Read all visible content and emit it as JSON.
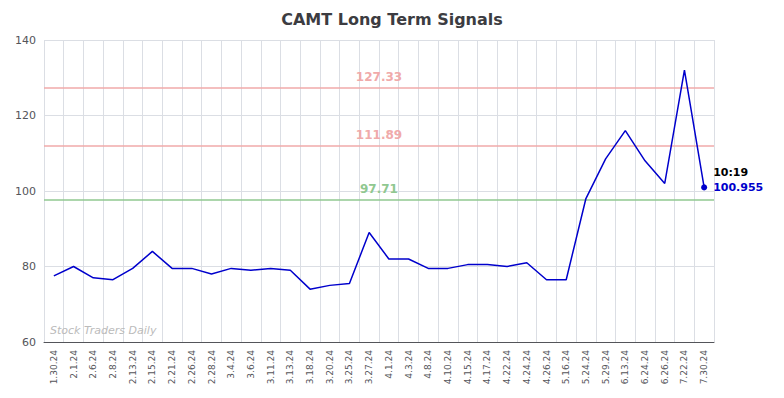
{
  "chart_data": {
    "type": "line",
    "title": "CAMT Long Term Signals",
    "categories": [
      "1.30.24",
      "2.1.24",
      "2.6.24",
      "2.8.24",
      "2.13.24",
      "2.15.24",
      "2.21.24",
      "2.26.24",
      "2.28.24",
      "3.4.24",
      "3.6.24",
      "3.11.24",
      "3.13.24",
      "3.18.24",
      "3.20.24",
      "3.25.24",
      "3.27.24",
      "4.1.24",
      "4.3.24",
      "4.8.24",
      "4.10.24",
      "4.15.24",
      "4.17.24",
      "4.22.24",
      "4.24.24",
      "4.26.24",
      "5.16.24",
      "5.24.24",
      "5.29.24",
      "6.13.24",
      "6.24.24",
      "6.26.24",
      "7.22.24",
      "7.30.24"
    ],
    "values": [
      77.5,
      80.0,
      77.0,
      76.5,
      79.5,
      84.0,
      79.5,
      79.5,
      78.0,
      79.5,
      79.0,
      79.5,
      79.0,
      74.0,
      75.0,
      75.5,
      89.0,
      82.0,
      82.0,
      79.5,
      79.5,
      80.5,
      80.5,
      80.0,
      81.0,
      76.5,
      76.5,
      98.0,
      108.5,
      116.0,
      108.0,
      102.0,
      132.0,
      100.955
    ],
    "color": "#0000cc",
    "ylim": [
      60,
      140
    ],
    "yticks": [
      60,
      80,
      100,
      120,
      140
    ],
    "grid": true,
    "hlines": [
      {
        "value": 97.71,
        "label": "97.71",
        "color": "#90c890"
      },
      {
        "value": 111.89,
        "label": "111.89",
        "color": "#f0aaaa"
      },
      {
        "value": 127.33,
        "label": "127.33",
        "color": "#f0aaaa"
      }
    ],
    "annotations": [
      {
        "text": "10:19",
        "x": "7.30.24",
        "y": 100.955
      },
      {
        "text": "100.955",
        "x": "7.30.24",
        "y": 100.955
      },
      {
        "text": "Stock Traders Daily"
      }
    ]
  }
}
